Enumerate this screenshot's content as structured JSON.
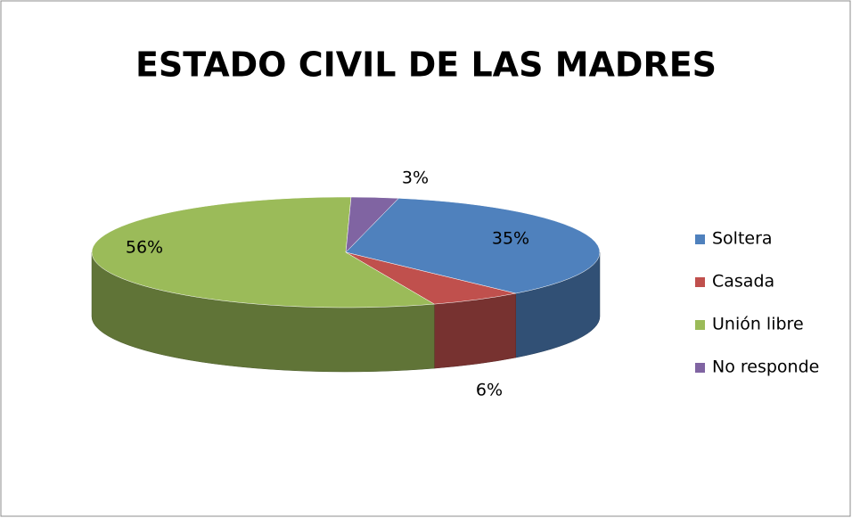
{
  "chart_data": {
    "type": "pie",
    "title": "ESTADO CIVIL DE LAS MADRES",
    "categories": [
      "Soltera",
      "Casada",
      "Unión libre",
      "No responde"
    ],
    "values": [
      35,
      6,
      56,
      3
    ],
    "value_labels": [
      "35%",
      "6%",
      "56%",
      "3%"
    ],
    "colors": [
      "#4f81bd",
      "#c0504d",
      "#9bbb59",
      "#8064a2"
    ],
    "legend": "right"
  }
}
